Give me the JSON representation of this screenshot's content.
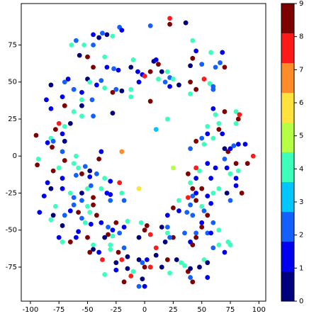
{
  "chart_data": {
    "type": "scatter",
    "x": [
      5,
      22,
      22,
      36,
      42,
      45,
      42,
      40,
      50,
      -22,
      -20,
      -37,
      -45,
      -33,
      -40,
      -28,
      -60,
      -64,
      -53,
      -45,
      -57,
      -50,
      -35,
      -45,
      -33,
      -27,
      -23,
      -12,
      -10,
      -6,
      5,
      8,
      10,
      12,
      15,
      12,
      20,
      22,
      25,
      -2,
      0,
      18,
      22,
      30,
      40,
      45,
      40,
      52,
      57,
      60,
      62,
      66,
      70,
      58,
      68,
      -67,
      -70,
      -82,
      -72,
      -62,
      -55,
      -50,
      -48,
      -42,
      -38,
      -35,
      -28,
      -25,
      -20,
      -12,
      -5,
      -55,
      -46,
      -55,
      -70,
      -86,
      -82,
      -62,
      -55,
      -45,
      -28,
      -65,
      -70,
      -72,
      -75,
      -78,
      -82,
      -80,
      -85,
      -81,
      -70,
      -72,
      -95,
      -93,
      -94,
      -70,
      -62,
      -58,
      -52,
      -48,
      -40,
      -38,
      -60,
      -75,
      -80,
      -72,
      -60,
      -55,
      -48,
      -42,
      -35,
      -30,
      -85,
      -82,
      -88,
      -72,
      -65,
      -62,
      -55,
      -50,
      -47,
      -45,
      -38,
      -33,
      -30,
      -30,
      -22,
      -20,
      -18,
      -55,
      -62,
      -65,
      -58,
      -55,
      -50,
      -48,
      -45,
      -42,
      -78,
      -92,
      -80,
      -82,
      -70,
      -72,
      -52,
      -47,
      -38,
      -32,
      -28,
      -25,
      -18,
      -15,
      -30,
      -22,
      -28,
      -50,
      -45,
      -45,
      -48,
      -40,
      -37,
      -30,
      -23,
      -25,
      -20,
      -15,
      -18,
      -35,
      -25,
      -18,
      -12,
      -15,
      -75,
      -72,
      -65,
      -60,
      -58,
      -32,
      -35,
      -5,
      -2,
      2,
      5,
      10,
      15,
      20,
      22,
      28,
      32,
      35,
      38,
      40,
      42,
      40,
      48,
      52,
      55,
      55,
      -5,
      0,
      5,
      0,
      -10,
      -2,
      60,
      65,
      70,
      75,
      73,
      55,
      58,
      65,
      50,
      45,
      35,
      40,
      42,
      45,
      25,
      22,
      20,
      18,
      10,
      5,
      0,
      -5,
      -3,
      2,
      15,
      20,
      25,
      30,
      37,
      42,
      40,
      45,
      50,
      52,
      55,
      60,
      50,
      20,
      30,
      38,
      42,
      45,
      50,
      55,
      58,
      60,
      65,
      72,
      75,
      80,
      85,
      90,
      80,
      82,
      80,
      75,
      72,
      70,
      73,
      75,
      78,
      82,
      88,
      95,
      70,
      62,
      58,
      55,
      48,
      45,
      40,
      42,
      38,
      45,
      40,
      45,
      50,
      52,
      55,
      60,
      55,
      65,
      65,
      68,
      62,
      60,
      70,
      80,
      82,
      80,
      83,
      60,
      -20,
      -5,
      25,
      10,
      20,
      5,
      -12
    ],
    "y": [
      88,
      93,
      89,
      90,
      78,
      71,
      66,
      61,
      62,
      87,
      85,
      83,
      82,
      82,
      80,
      81,
      78,
      75,
      75,
      75,
      68,
      67,
      67,
      60,
      60,
      59,
      58,
      60,
      65,
      57,
      57,
      64,
      65,
      62,
      57,
      52,
      57,
      53,
      52,
      55,
      54,
      50,
      47,
      48,
      50,
      45,
      42,
      52,
      49,
      47,
      60,
      63,
      60,
      70,
      70,
      52,
      50,
      48,
      40,
      45,
      43,
      52,
      50,
      48,
      51,
      46,
      43,
      45,
      44,
      45,
      50,
      38,
      38,
      34,
      34,
      38,
      32,
      30,
      27,
      27,
      29,
      22,
      20,
      15,
      22,
      18,
      12,
      10,
      9,
      6,
      10,
      3,
      14,
      -2,
      -6,
      -3,
      -5,
      -8,
      -7,
      -10,
      -2,
      3,
      0,
      -8,
      -10,
      -15,
      -13,
      -12,
      -14,
      -12,
      -15,
      -17,
      -18,
      -22,
      -27,
      -22,
      -25,
      -28,
      -25,
      -22,
      -20,
      -28,
      -22,
      -25,
      -26,
      -30,
      -18,
      -25,
      -30,
      -30,
      -33,
      -37,
      -38,
      -42,
      -34,
      -38,
      -33,
      -40,
      -34,
      -38,
      -40,
      -43,
      -40,
      -47,
      -45,
      -46,
      -45,
      -48,
      -50,
      -45,
      -48,
      -44,
      -60,
      -52,
      -54,
      -55,
      -60,
      -63,
      -65,
      -65,
      -70,
      -63,
      -65,
      -72,
      -70,
      -68,
      -62,
      -80,
      -77,
      -85,
      -81,
      -76,
      -55,
      -58,
      -58,
      -55,
      -51,
      -53,
      -55,
      -70,
      -72,
      -70,
      -75,
      -67,
      -75,
      -70,
      -79,
      -70,
      -72,
      -74,
      -78,
      -76,
      -85,
      -82,
      -75,
      -70,
      -72,
      -82,
      -88,
      -88,
      -75,
      -75,
      -78,
      -83,
      -62,
      -60,
      -65,
      -60,
      -58,
      -52,
      -52,
      -50,
      -48,
      -52,
      -52,
      -58,
      -60,
      -55,
      -55,
      -55,
      -52,
      -58,
      -62,
      -53,
      -50,
      -55,
      -45,
      -47,
      -48,
      -40,
      -35,
      -37,
      -38,
      -40,
      -33,
      -30,
      -34,
      -37,
      -40,
      -45,
      -45,
      -48,
      -30,
      -28,
      -27,
      -25,
      -22,
      -27,
      -32,
      -25,
      -22,
      -25,
      -30,
      -20,
      -25,
      -5,
      -5,
      -10,
      -15,
      -12,
      -8,
      -2,
      3,
      5,
      7,
      8,
      8,
      0,
      5,
      -8,
      -15,
      -5,
      -10,
      -15,
      -18,
      -22,
      -12,
      -8,
      5,
      10,
      12,
      8,
      15,
      12,
      20,
      18,
      22,
      15,
      28,
      32,
      30,
      22,
      25,
      30,
      28,
      45,
      3,
      -22,
      -8,
      18,
      25,
      37,
      40
    ],
    "c": [
      2,
      8,
      9,
      0,
      4,
      1,
      9,
      0,
      2,
      2,
      1,
      2,
      1,
      0,
      0,
      4,
      2,
      4,
      4,
      2,
      0,
      9,
      4,
      9,
      1,
      2,
      1,
      0,
      4,
      1,
      9,
      0,
      1,
      9,
      0,
      4,
      4,
      2,
      4,
      1,
      8,
      2,
      1,
      0,
      9,
      9,
      4,
      8,
      4,
      2,
      2,
      2,
      9,
      4,
      1,
      1,
      2,
      0,
      1,
      2,
      1,
      0,
      4,
      1,
      2,
      4,
      9,
      2,
      0,
      4,
      1,
      4,
      2,
      0,
      9,
      1,
      1,
      4,
      4,
      2,
      0,
      0,
      4,
      1,
      8,
      9,
      4,
      2,
      1,
      9,
      0,
      2,
      9,
      4,
      9,
      9,
      4,
      4,
      2,
      0,
      9,
      1,
      4,
      4,
      9,
      1,
      2,
      9,
      1,
      2,
      4,
      1,
      1,
      0,
      1,
      1,
      4,
      2,
      0,
      4,
      2,
      9,
      4,
      1,
      1,
      2,
      8,
      4,
      2,
      2,
      2,
      1,
      9,
      2,
      4,
      4,
      9,
      9,
      4,
      1,
      0,
      4,
      2,
      0,
      4,
      1,
      1,
      2,
      1,
      9,
      1,
      4,
      4,
      2,
      4,
      9,
      4,
      0,
      9,
      1,
      8,
      4,
      9,
      0,
      8,
      0,
      2,
      4,
      1,
      9,
      8,
      0,
      1,
      4,
      9,
      1,
      1,
      9,
      0,
      0,
      2,
      1,
      4,
      0,
      0,
      9,
      4,
      0,
      4,
      4,
      9,
      0,
      9,
      2,
      0,
      4,
      0,
      1,
      2,
      1,
      8,
      9,
      4,
      0,
      2,
      4,
      1,
      4,
      4,
      2,
      1,
      4,
      9,
      2,
      2,
      1,
      9,
      9,
      9,
      2,
      4,
      0,
      8,
      8,
      9,
      0,
      4,
      9,
      0,
      1,
      9,
      1,
      2,
      2,
      2,
      9,
      4,
      2,
      9,
      2,
      1,
      2,
      4,
      8,
      2,
      1,
      9,
      1,
      1,
      4,
      4,
      0,
      2,
      1,
      9,
      9,
      9,
      4,
      1,
      4,
      1,
      2,
      9,
      1,
      2,
      1,
      1,
      8,
      0,
      1,
      1,
      1,
      4,
      1,
      4,
      9,
      9,
      8,
      2,
      9,
      2,
      4,
      1,
      4,
      4,
      9,
      4,
      1,
      4,
      1,
      9,
      4,
      9,
      4,
      8,
      2,
      7,
      6,
      5,
      3,
      4,
      9,
      4
    ],
    "xlim": [
      -108,
      106
    ],
    "ylim": [
      -98,
      103
    ],
    "xticks": [
      -100,
      -75,
      -50,
      -25,
      0,
      25,
      50,
      75,
      100
    ],
    "yticks": [
      -75,
      -50,
      -25,
      0,
      25,
      50,
      75
    ],
    "colorbar": {
      "clim": [
        0,
        9
      ],
      "ticks": [
        0,
        1,
        2,
        3,
        4,
        5,
        6,
        7,
        8,
        9
      ],
      "colors": [
        "#00007f",
        "#0000f0",
        "#1460ff",
        "#00c8ff",
        "#3dffbc",
        "#b5ff44",
        "#ffe23c",
        "#ff8c28",
        "#ff1a1a",
        "#7f0000"
      ]
    }
  }
}
